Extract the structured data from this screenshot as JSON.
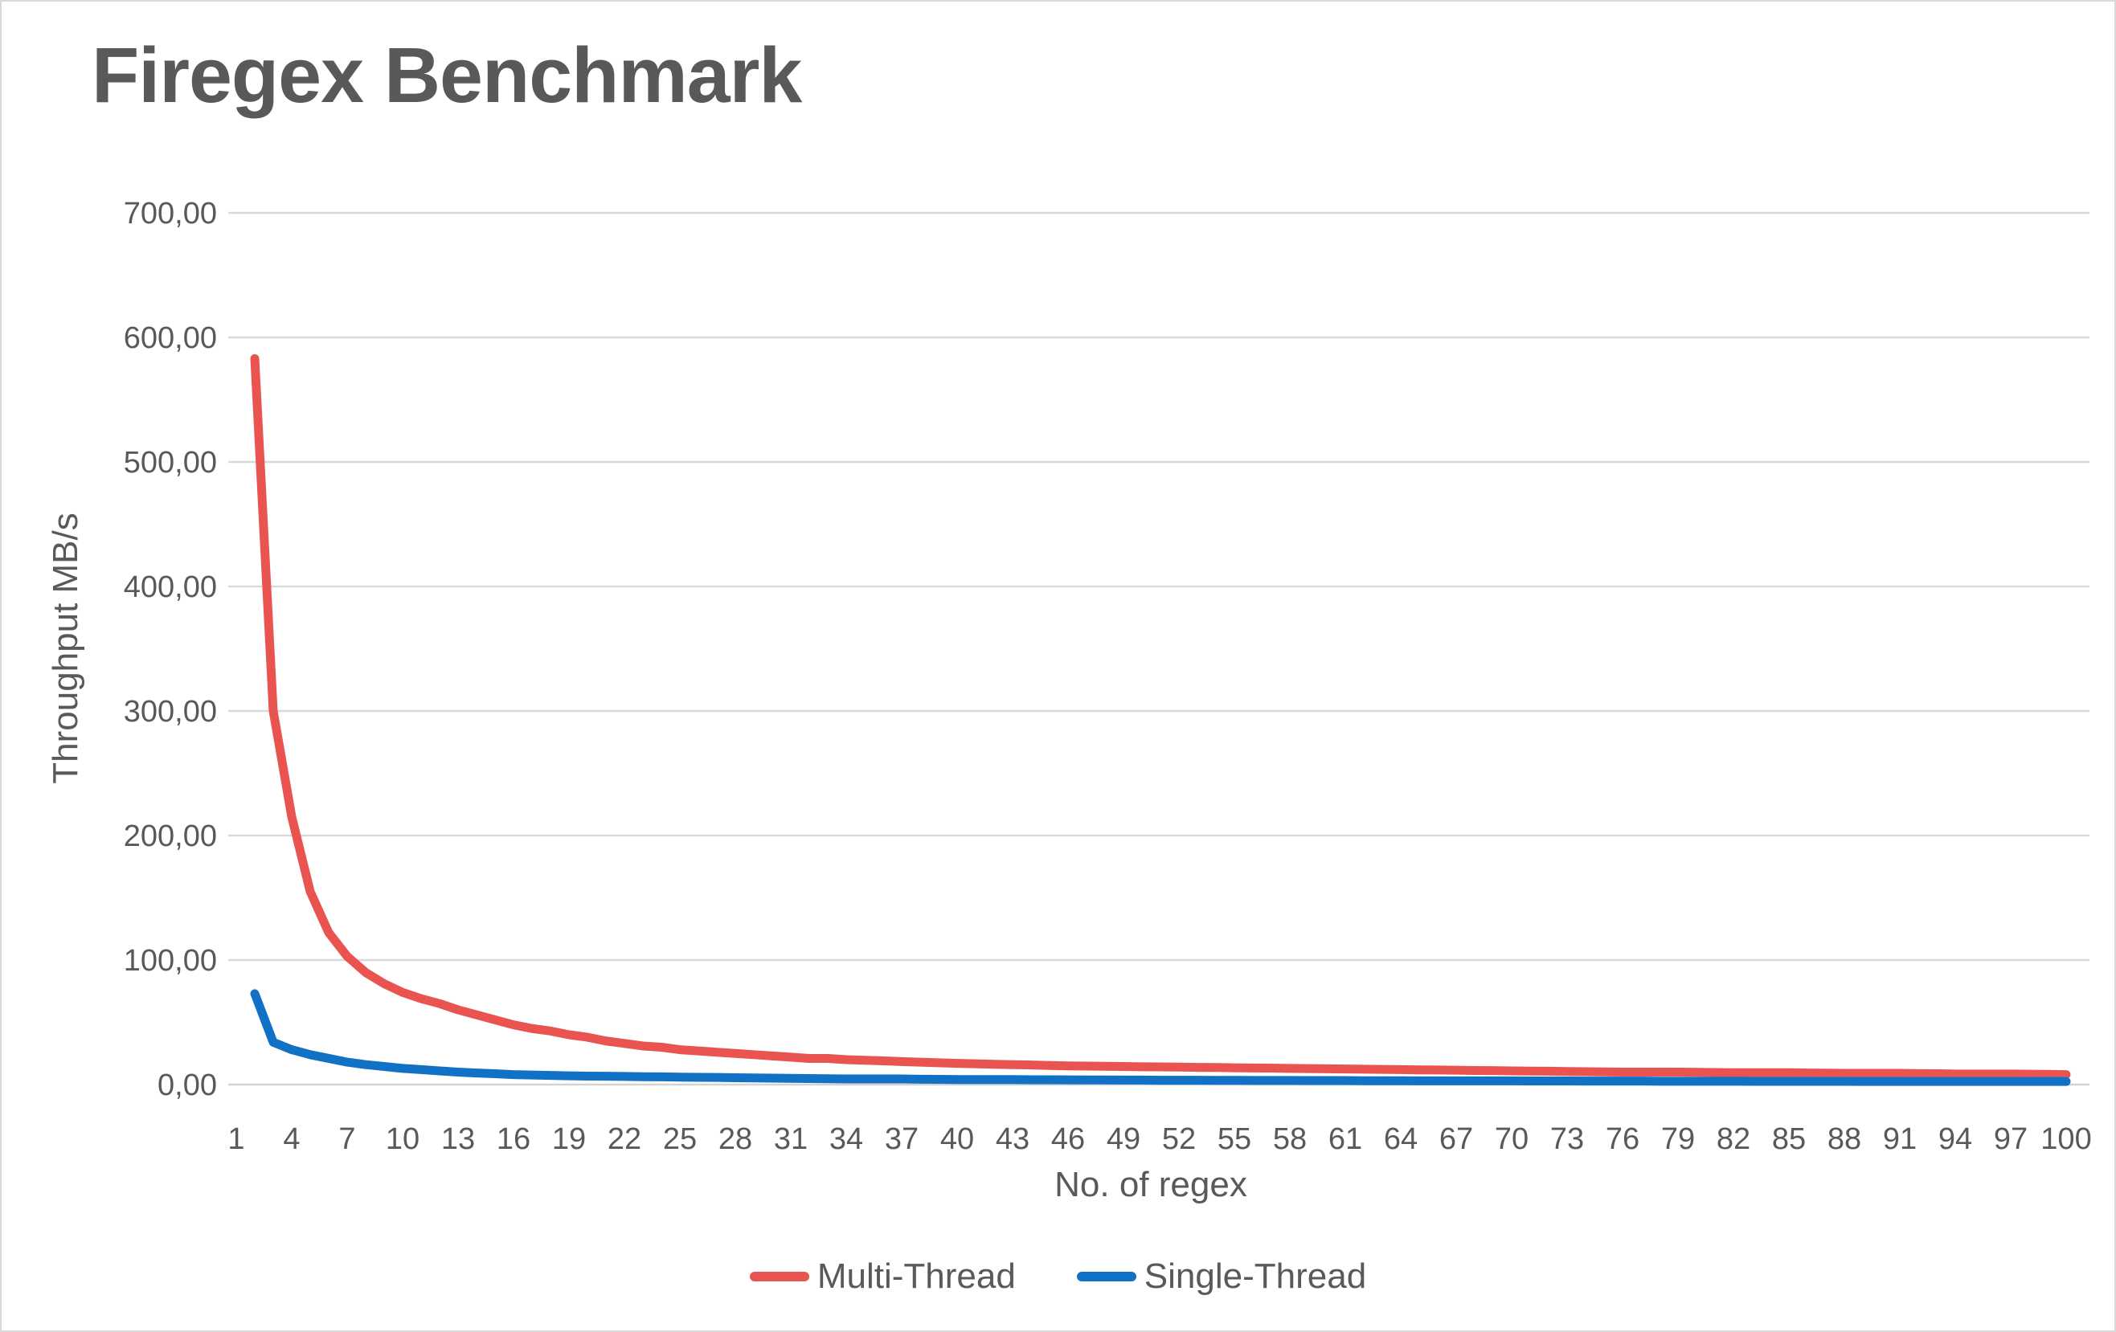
{
  "chart_data": {
    "type": "line",
    "title": "Firegex Benchmark",
    "xlabel": "No. of regex",
    "ylabel": "Throughput MB/s",
    "xlim": [
      1,
      100
    ],
    "ylim": [
      0,
      700
    ],
    "y_tick_step": 100,
    "x_tick_step": 3,
    "grid": "horizontal",
    "legend_position": "bottom-center",
    "decimal_separator": "comma",
    "y_tick_labels": [
      "700,00",
      "600,00",
      "500,00",
      "400,00",
      "300,00",
      "200,00",
      "100,00",
      "0,00"
    ],
    "x_tick_values": [
      1,
      4,
      7,
      10,
      13,
      16,
      19,
      22,
      25,
      28,
      31,
      34,
      37,
      40,
      43,
      46,
      49,
      52,
      55,
      58,
      61,
      64,
      67,
      70,
      73,
      76,
      79,
      82,
      85,
      88,
      91,
      94,
      97,
      100
    ],
    "colors": {
      "grid": "#d9d9d9",
      "axis": "#d3d3d3",
      "text": "#595959"
    },
    "x": [
      2,
      3,
      4,
      5,
      6,
      7,
      8,
      9,
      10,
      11,
      12,
      13,
      14,
      15,
      16,
      17,
      18,
      19,
      20,
      21,
      22,
      23,
      24,
      25,
      26,
      27,
      28,
      29,
      30,
      31,
      32,
      33,
      34,
      35,
      36,
      37,
      38,
      39,
      40,
      41,
      42,
      43,
      44,
      45,
      46,
      47,
      48,
      49,
      50,
      51,
      52,
      53,
      54,
      55,
      56,
      57,
      58,
      59,
      60,
      61,
      62,
      63,
      64,
      65,
      66,
      67,
      68,
      69,
      70,
      71,
      72,
      73,
      74,
      75,
      76,
      77,
      78,
      79,
      80,
      81,
      82,
      83,
      84,
      85,
      86,
      87,
      88,
      89,
      90,
      91,
      92,
      93,
      94,
      95,
      96,
      97,
      98,
      99,
      100
    ],
    "series": [
      {
        "name": "Multi-Thread",
        "color": "#e95450",
        "values": [
          583,
          300,
          215,
          155,
          122,
          103,
          90,
          81,
          74,
          69,
          65,
          60,
          56,
          52,
          48,
          45,
          43,
          40,
          38,
          35,
          33,
          31,
          30,
          28,
          27,
          26,
          25,
          24,
          23,
          22,
          21,
          21,
          20,
          19.5,
          19,
          18.5,
          18,
          17.5,
          17,
          16.7,
          16.3,
          16,
          15.7,
          15.3,
          15,
          14.8,
          14.7,
          14.5,
          14.3,
          14.2,
          14,
          13.8,
          13.7,
          13.5,
          13.3,
          13.2,
          13,
          12.8,
          12.7,
          12.5,
          12.3,
          12.2,
          12,
          11.8,
          11.7,
          11.5,
          11.3,
          11.2,
          11,
          10.8,
          10.7,
          10.5,
          10.3,
          10.2,
          10,
          10,
          10,
          10,
          9.8,
          9.7,
          9.5,
          9.5,
          9.5,
          9.5,
          9.3,
          9.2,
          9,
          9,
          9,
          9,
          8.8,
          8.7,
          8.5,
          8.5,
          8.5,
          8.5,
          8.3,
          8.2,
          8
        ]
      },
      {
        "name": "Single-Thread",
        "color": "#1171c4",
        "values": [
          73,
          34,
          28,
          24,
          21,
          18,
          16,
          14.5,
          13,
          12,
          11,
          10,
          9.3,
          8.7,
          8,
          7.7,
          7.3,
          7,
          6.8,
          6.7,
          6.5,
          6.3,
          6.2,
          6,
          5.8,
          5.7,
          5.5,
          5.3,
          5.2,
          5,
          4.8,
          4.7,
          4.5,
          4.5,
          4.5,
          4.5,
          4.3,
          4.2,
          4,
          4,
          4,
          4,
          3.9,
          3.9,
          3.8,
          3.7,
          3.7,
          3.6,
          3.6,
          3.5,
          3.5,
          3.5,
          3.4,
          3.4,
          3.3,
          3.3,
          3.3,
          3.2,
          3.2,
          3.2,
          3.1,
          3.1,
          3.1,
          3,
          3,
          3,
          3,
          3,
          3,
          2.9,
          2.9,
          2.9,
          2.8,
          2.8,
          2.8,
          2.8,
          2.7,
          2.7,
          2.7,
          2.7,
          2.7,
          2.6,
          2.6,
          2.6,
          2.6,
          2.6,
          2.6,
          2.5,
          2.5,
          2.5,
          2.5,
          2.5,
          2.5,
          2.5,
          2.5,
          2.5,
          2.5,
          2.5,
          2.5
        ]
      }
    ]
  }
}
